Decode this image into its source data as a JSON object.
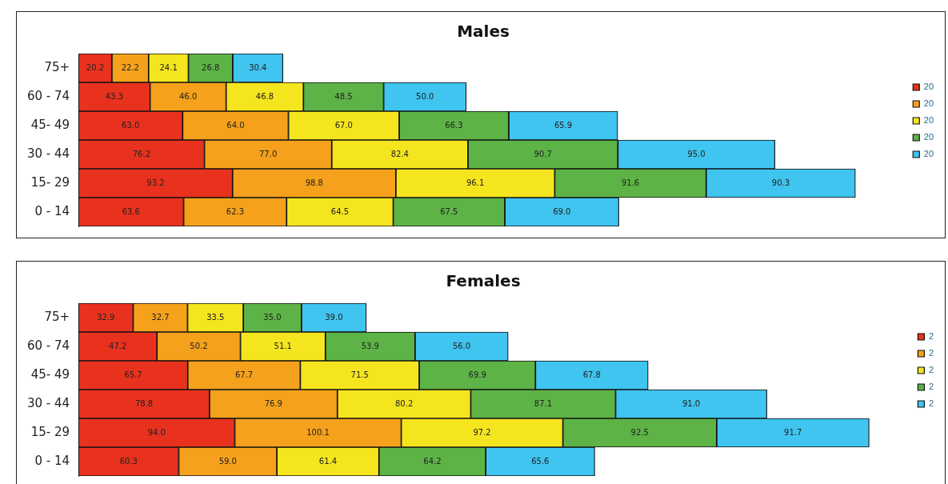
{
  "chart_data": [
    {
      "type": "bar",
      "title": "Males",
      "orientation": "horizontal",
      "stacked": true,
      "tick_labels": "y",
      "legend": "right",
      "categories": [
        "75+",
        "60 - 74",
        "45- 49",
        "30 - 44",
        "15- 29",
        "0 - 14"
      ],
      "series": [
        {
          "name": "20",
          "color": "#e8321e",
          "values": [
            20.2,
            43.3,
            63.0,
            76.2,
            93.2,
            63.6
          ],
          "value_labels": [
            "20.2",
            "43.3",
            "63.0",
            "76.2",
            "93.2",
            "63.6"
          ]
        },
        {
          "name": "20",
          "color": "#f5a11c",
          "values": [
            22.2,
            46.0,
            64.0,
            77.0,
            98.8,
            62.3
          ],
          "value_labels": [
            "22.2",
            "46.0",
            "64.0",
            "77.0",
            "98.8",
            "62.3"
          ]
        },
        {
          "name": "20",
          "color": "#f5e51e",
          "values": [
            24.1,
            46.8,
            67.0,
            82.4,
            96.1,
            64.5
          ],
          "value_labels": [
            "24.1",
            "46.8",
            "67.0",
            "82.4",
            "96.1",
            "64.5"
          ]
        },
        {
          "name": "20",
          "color": "#5db346",
          "values": [
            26.8,
            48.5,
            66.3,
            90.7,
            91.6,
            67.5
          ],
          "value_labels": [
            "26.8",
            "48.5",
            "66.3",
            "90.7",
            "91.6",
            "67.5"
          ]
        },
        {
          "name": "20",
          "color": "#40c4f0",
          "values": [
            30.4,
            50.0,
            65.9,
            95.0,
            90.3,
            69.0
          ],
          "value_labels": [
            "30.4",
            "50.0",
            "65.9",
            "95.0",
            "90.3",
            "69.0"
          ]
        }
      ]
    },
    {
      "type": "bar",
      "title": "Females",
      "orientation": "horizontal",
      "stacked": true,
      "tick_labels": "y",
      "legend": "right",
      "categories": [
        "75+",
        "60 - 74",
        "45- 49",
        "30 - 44",
        "15- 29",
        "0 - 14"
      ],
      "series": [
        {
          "name": "2",
          "color": "#e8321e",
          "values": [
            32.9,
            47.2,
            65.7,
            78.8,
            94.0,
            60.3
          ],
          "value_labels": [
            "32.9",
            "47.2",
            "65.7",
            "78.8",
            "94.0",
            "60.3"
          ]
        },
        {
          "name": "2",
          "color": "#f5a11c",
          "values": [
            32.7,
            50.2,
            67.7,
            76.9,
            100.1,
            59.0
          ],
          "value_labels": [
            "32.7",
            "50.2",
            "67.7",
            "76.9",
            "100.1",
            "59.0"
          ]
        },
        {
          "name": "2",
          "color": "#f5e51e",
          "values": [
            33.5,
            51.1,
            71.5,
            80.2,
            97.2,
            61.4
          ],
          "value_labels": [
            "33.5",
            "51.1",
            "71.5",
            "80.2",
            "97.2",
            "61.4"
          ]
        },
        {
          "name": "2",
          "color": "#5db346",
          "values": [
            35.0,
            53.9,
            69.9,
            87.1,
            92.5,
            64.2
          ],
          "value_labels": [
            "35.0",
            "53.9",
            "69.9",
            "87.1",
            "92.5",
            "64.2"
          ]
        },
        {
          "name": "2",
          "color": "#40c4f0",
          "values": [
            39.0,
            56.0,
            67.8,
            91.0,
            91.7,
            65.6
          ],
          "value_labels": [
            "39.0",
            "56.0",
            "67.8",
            "91.0",
            "91.7",
            "65.6"
          ]
        }
      ]
    }
  ]
}
